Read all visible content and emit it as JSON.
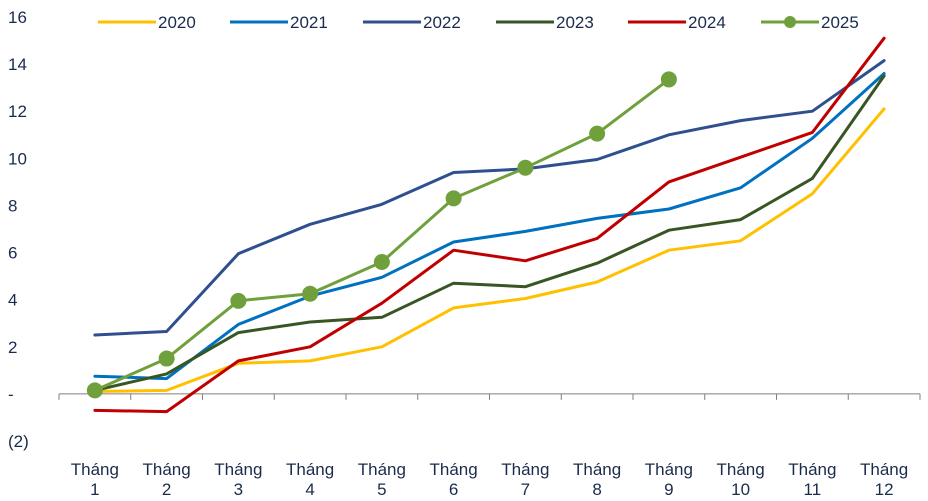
{
  "chart_data": {
    "type": "line",
    "categories": [
      [
        "Tháng",
        "1"
      ],
      [
        "Tháng",
        "2"
      ],
      [
        "Tháng",
        "3"
      ],
      [
        "Tháng",
        "4"
      ],
      [
        "Tháng",
        "5"
      ],
      [
        "Tháng",
        "6"
      ],
      [
        "Tháng",
        "7"
      ],
      [
        "Tháng",
        "8"
      ],
      [
        "Tháng",
        "9"
      ],
      [
        "Tháng",
        "10"
      ],
      [
        "Tháng",
        "11"
      ],
      [
        "Tháng",
        "12"
      ]
    ],
    "y_ticks": [
      {
        "value": -2,
        "label": "(2)"
      },
      {
        "value": 0,
        "label": "-"
      },
      {
        "value": 2,
        "label": "2"
      },
      {
        "value": 4,
        "label": "4"
      },
      {
        "value": 6,
        "label": "6"
      },
      {
        "value": 8,
        "label": "8"
      },
      {
        "value": 10,
        "label": "10"
      },
      {
        "value": 12,
        "label": "12"
      },
      {
        "value": 14,
        "label": "14"
      },
      {
        "value": 16,
        "label": "16"
      }
    ],
    "ylim": [
      -2,
      16
    ],
    "grid": false,
    "legend_position": "top",
    "series": [
      {
        "name": "2020",
        "color": "#ffc000",
        "markers": false,
        "values": [
          0.1,
          0.15,
          1.3,
          1.4,
          2.0,
          3.65,
          4.05,
          4.75,
          6.1,
          6.5,
          8.5,
          12.1
        ]
      },
      {
        "name": "2021",
        "color": "#0070c0",
        "markers": false,
        "values": [
          0.75,
          0.65,
          2.95,
          4.15,
          4.95,
          6.45,
          6.9,
          7.45,
          7.85,
          8.75,
          10.85,
          13.6
        ]
      },
      {
        "name": "2022",
        "color": "#2f4f8f",
        "markers": false,
        "values": [
          2.5,
          2.65,
          5.95,
          7.2,
          8.05,
          9.4,
          9.55,
          9.95,
          11.0,
          11.6,
          12.0,
          14.15
        ]
      },
      {
        "name": "2023",
        "color": "#375623",
        "markers": false,
        "values": [
          0.15,
          0.85,
          2.6,
          3.05,
          3.25,
          4.7,
          4.55,
          5.55,
          6.95,
          7.4,
          9.15,
          13.5
        ]
      },
      {
        "name": "2024",
        "color": "#c00000",
        "markers": false,
        "values": [
          -0.7,
          -0.75,
          1.4,
          2.0,
          3.85,
          6.1,
          5.65,
          6.6,
          9.0,
          10.05,
          11.1,
          15.1
        ]
      },
      {
        "name": "2025",
        "color": "#70a03c",
        "markers": true,
        "values": [
          0.15,
          1.5,
          3.95,
          4.25,
          5.6,
          8.3,
          9.6,
          11.05,
          13.35,
          null,
          null,
          null
        ]
      }
    ]
  }
}
